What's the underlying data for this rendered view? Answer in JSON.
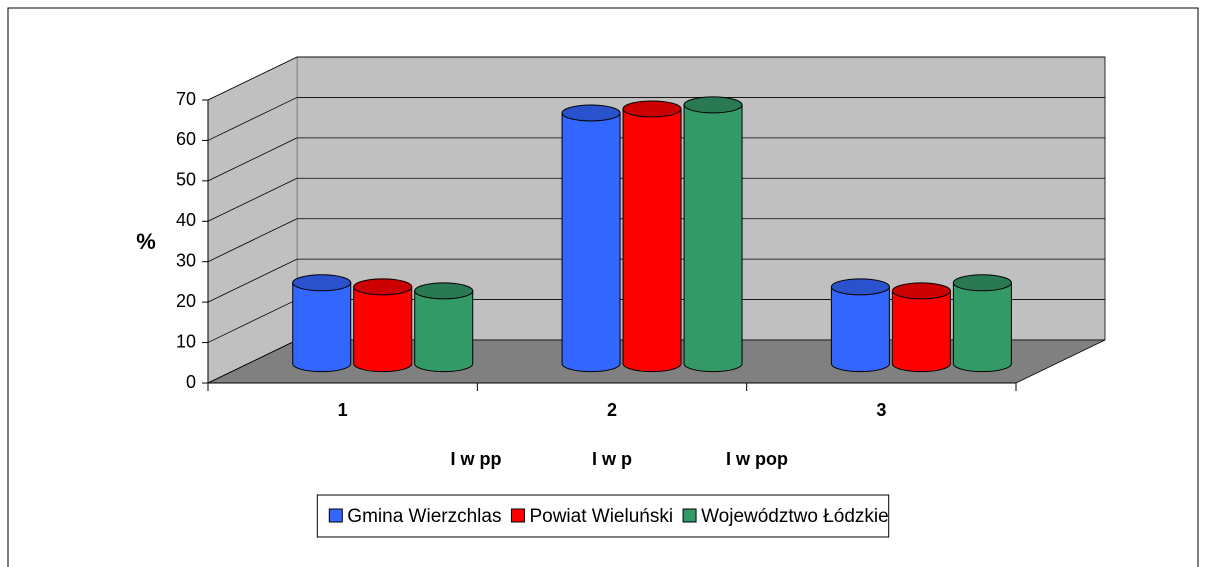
{
  "chart_data": {
    "type": "bar3d",
    "ylabel": "%",
    "categories": [
      "1",
      "2",
      "3"
    ],
    "annotations": [
      "I w pp",
      "I w p",
      "I w pop"
    ],
    "series": [
      {
        "name": "Gmina Wierzchlas",
        "color": "#3366ff",
        "values": [
          20,
          62,
          19
        ]
      },
      {
        "name": "Powiat Wieluński",
        "color": "#ff0000",
        "values": [
          19,
          63,
          18
        ]
      },
      {
        "name": "Województwo Łódzkie",
        "color": "#339966",
        "values": [
          18,
          64,
          20
        ]
      }
    ],
    "ylim": [
      0,
      70
    ],
    "yticks": [
      0,
      10,
      20,
      30,
      40,
      50,
      60,
      70
    ],
    "grid": true,
    "legend": "bottom"
  }
}
